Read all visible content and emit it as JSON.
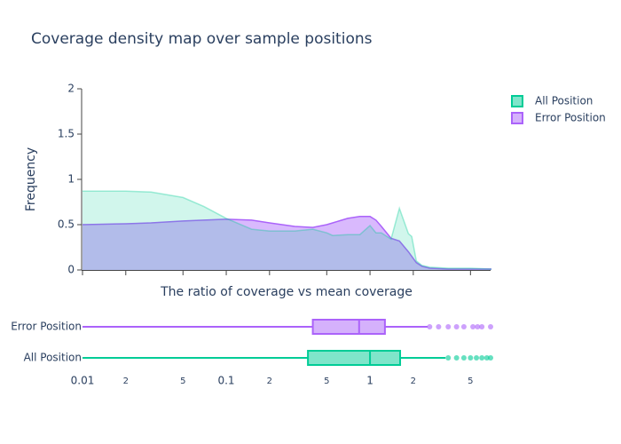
{
  "chart_data": [
    {
      "type": "area",
      "title": "Coverage density map over sample positions",
      "x_label": "The ratio of coverage vs mean coverage",
      "y_label": "Frequency",
      "log_x": true,
      "legend": "right",
      "x": [
        0.01,
        0.02,
        0.03,
        0.05,
        0.07,
        0.1,
        0.15,
        0.2,
        0.3,
        0.4,
        0.5,
        0.55,
        0.7,
        0.85,
        1,
        1.1,
        1.2,
        1.4,
        1.6,
        1.85,
        1.95,
        2.1,
        2.3,
        2.6,
        3.5,
        5,
        7
      ],
      "series": [
        {
          "name": "All Position",
          "color": "#00cc96",
          "values": [
            0.87,
            0.87,
            0.86,
            0.8,
            0.7,
            0.57,
            0.45,
            0.43,
            0.43,
            0.45,
            0.41,
            0.38,
            0.39,
            0.39,
            0.49,
            0.41,
            0.41,
            0.34,
            0.68,
            0.4,
            0.37,
            0.1,
            0.05,
            0.03,
            0.02,
            0.02,
            0.01
          ]
        },
        {
          "name": "Error Position",
          "color": "#ab63fa",
          "values": [
            0.5,
            0.51,
            0.52,
            0.54,
            0.55,
            0.56,
            0.55,
            0.52,
            0.48,
            0.47,
            0.5,
            0.52,
            0.57,
            0.59,
            0.59,
            0.55,
            0.48,
            0.35,
            0.32,
            0.2,
            0.15,
            0.08,
            0.04,
            0.02,
            0.01,
            0.01,
            0.01
          ]
        }
      ],
      "xlim": [
        0.01,
        6.9
      ],
      "xticks": [
        0.01,
        0.02,
        0.05,
        0.1,
        0.2,
        0.5,
        1,
        2,
        5
      ],
      "ylim": [
        0,
        2
      ],
      "yticks": [
        0,
        0.5,
        1,
        1.5,
        2
      ]
    },
    {
      "type": "box",
      "log_x": true,
      "series": [
        {
          "name": "Error Position",
          "color": "#ab63fa",
          "min": 0.01,
          "q1": 0.4,
          "median": 0.84,
          "q3": 1.27,
          "max": 2.52,
          "outliers": [
            2.6,
            3,
            3.5,
            4,
            4.5,
            5.2,
            5.6,
            6,
            6.9
          ]
        },
        {
          "name": "All Position",
          "color": "#00cc96",
          "min": 0.01,
          "q1": 0.37,
          "median": 1,
          "q3": 1.62,
          "max": 3.35,
          "outliers": [
            3.5,
            4,
            4.5,
            5,
            5.5,
            6,
            6.5,
            6.9
          ]
        }
      ],
      "xlim": [
        0.01,
        6.9
      ],
      "xticks": [
        0.01,
        {
          "value": 0.02,
          "label": "2"
        },
        {
          "value": 0.05,
          "label": "5"
        },
        0.1,
        {
          "value": 0.2,
          "label": "2"
        },
        {
          "value": 0.5,
          "label": "5"
        },
        1,
        2,
        5
      ]
    }
  ]
}
